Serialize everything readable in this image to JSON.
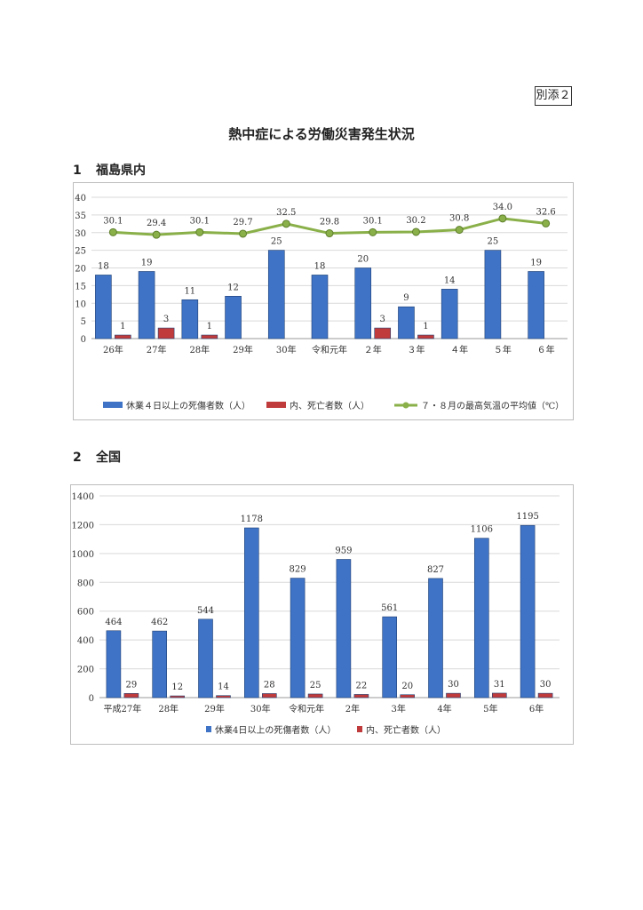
{
  "attachment_label": "別添２",
  "doc_title": "熱中症による労働災害発生状況",
  "sections": [
    {
      "number": "1",
      "title": "福島県内"
    },
    {
      "number": "2",
      "title": "全国"
    }
  ],
  "colors": {
    "blue": "#3e73c6",
    "red": "#c03b3b",
    "green": "#8ab04a",
    "grid": "#d9d9d9"
  },
  "chart_data": [
    {
      "type": "bar",
      "categories": [
        "26年",
        "27年",
        "28年",
        "29年",
        "30年",
        "令和元年",
        "２年",
        "３年",
        "４年",
        "５年",
        "６年"
      ],
      "ylim": [
        0,
        40
      ],
      "yticks": [
        0,
        5,
        10,
        15,
        20,
        25,
        30,
        35,
        40
      ],
      "grid": true,
      "legend_position": "bottom",
      "series": [
        {
          "name": "休業４日以上の死傷者数（人）",
          "type": "bar",
          "color": "#3e73c6",
          "values": [
            18,
            19,
            11,
            12,
            25,
            18,
            20,
            9,
            14,
            25,
            19
          ]
        },
        {
          "name": "内、死亡者数（人）",
          "type": "bar",
          "color": "#c03b3b",
          "values": [
            1,
            3,
            1,
            0,
            0,
            0,
            3,
            1,
            0,
            0,
            0
          ]
        },
        {
          "name": "７・８月の最高気温の平均値（℃）",
          "type": "line",
          "color": "#8ab04a",
          "values": [
            30.1,
            29.4,
            30.1,
            29.7,
            32.5,
            29.8,
            30.1,
            30.2,
            30.8,
            34.0,
            32.6
          ],
          "labels": [
            "30.1",
            "29.4",
            "30.1",
            "29.7",
            "32.5",
            "29.8",
            "30.1",
            "30.2",
            "30.8",
            "34.0",
            "32.6"
          ]
        }
      ]
    },
    {
      "type": "bar",
      "categories": [
        "平成27年",
        "28年",
        "29年",
        "30年",
        "令和元年",
        "2年",
        "3年",
        "4年",
        "5年",
        "6年"
      ],
      "ylim": [
        0,
        1400
      ],
      "yticks": [
        0,
        200,
        400,
        600,
        800,
        1000,
        1200,
        1400
      ],
      "grid": true,
      "legend_position": "bottom",
      "series": [
        {
          "name": "休業4日以上の死傷者数（人）",
          "type": "bar",
          "color": "#3e73c6",
          "values": [
            464,
            462,
            544,
            1178,
            829,
            959,
            561,
            827,
            1106,
            1195
          ]
        },
        {
          "name": "内、死亡者数（人）",
          "type": "bar",
          "color": "#c03b3b",
          "values": [
            29,
            12,
            14,
            28,
            25,
            22,
            20,
            30,
            31,
            30
          ]
        }
      ]
    }
  ]
}
